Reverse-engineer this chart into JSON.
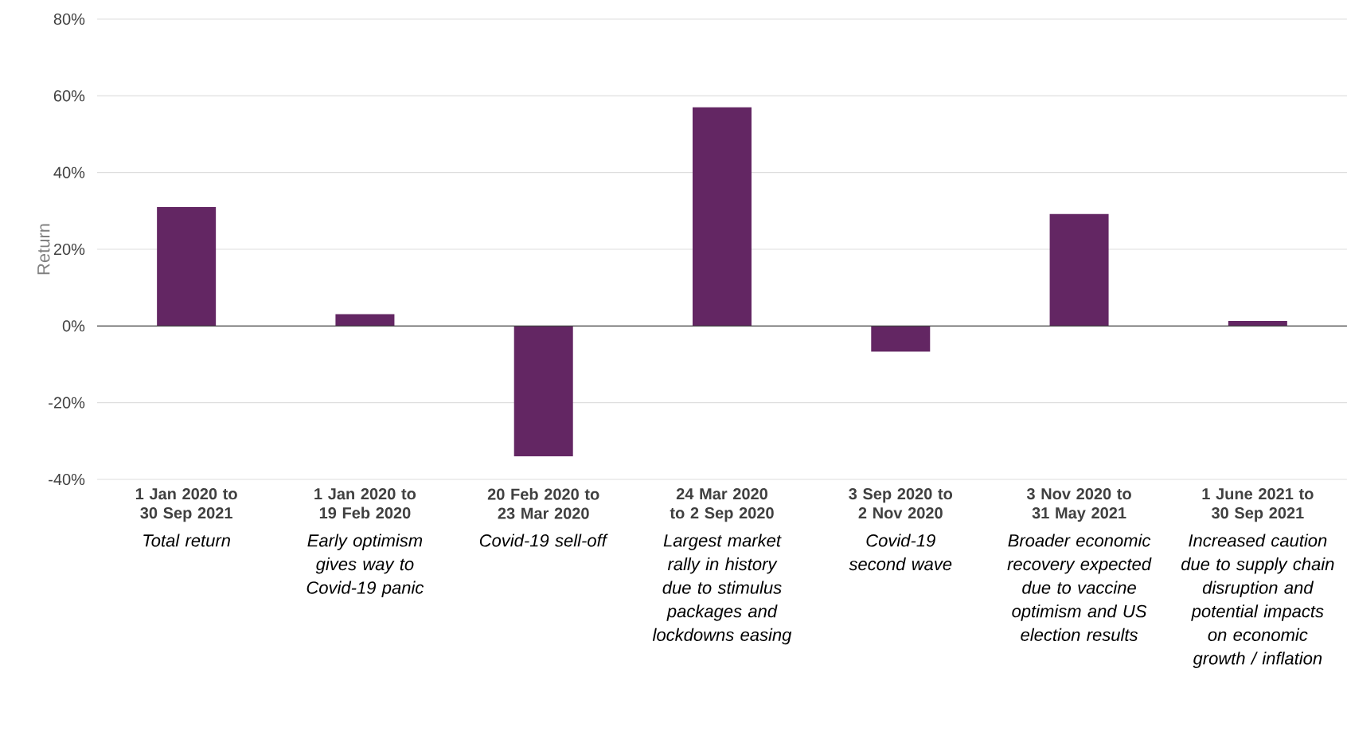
{
  "chart_data": {
    "type": "bar",
    "ylabel": "Return",
    "categories": [
      "1 Jan 2020 to 30 Sep 2021",
      "1 Jan 2020 to 19 Feb 2020",
      "20 Feb 2020 to 23 Mar 2020",
      "24 Mar 2020 to 2 Sep 2020",
      "3 Sep 2020 to 2 Nov 2020",
      "3 Nov 2020 to 31 May 2021",
      "1 June 2021 to 30 Sep 2021"
    ],
    "values": [
      31,
      3.1,
      -34,
      57,
      -6.7,
      29.2,
      1.3
    ],
    "color": "#632663",
    "ylim": [
      -40,
      80
    ],
    "yticks": [
      {
        "value": -40,
        "label": "-40%"
      },
      {
        "value": -20,
        "label": "-20%"
      },
      {
        "value": 0,
        "label": "0%"
      },
      {
        "value": 20,
        "label": "20%"
      },
      {
        "value": 40,
        "label": "40%"
      },
      {
        "value": 60,
        "label": "60%"
      },
      {
        "value": 80,
        "label": "80%"
      }
    ],
    "grid": "y",
    "annotations": [
      "*Total return*",
      "*Early optimism gives way to Covid-19 panic*",
      "*Covid-19 sell-off*",
      "*Largest market rally in history due to stimulus packages and lockdowns easing*",
      "*Covid-19 second wave*",
      "*Broader economic recovery expected due to vaccine optimism and US election results*",
      "*Increased caution due to supply chain disruption and potential impacts on economic growth / inflation*"
    ]
  }
}
